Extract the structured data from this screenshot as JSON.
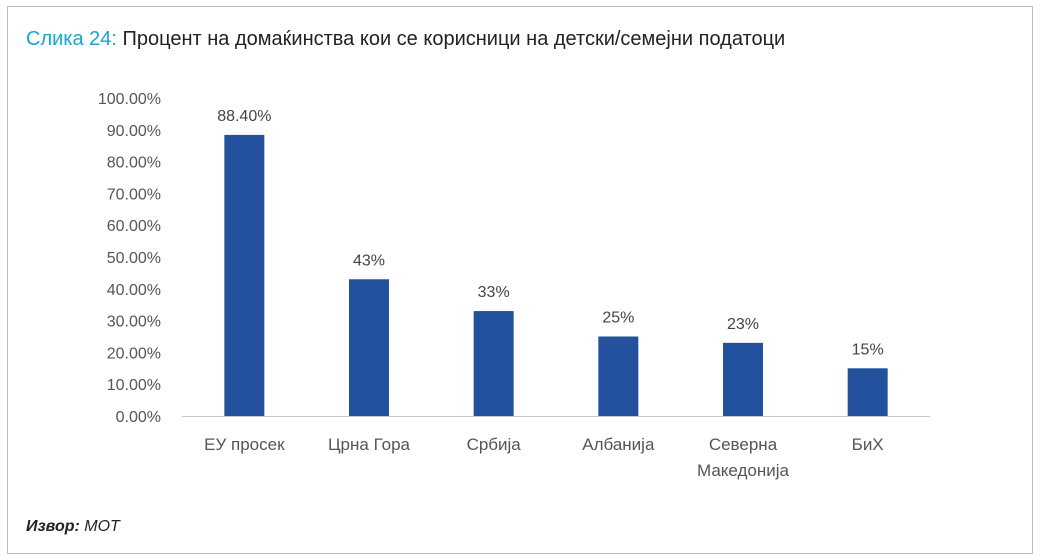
{
  "figure": {
    "prefix": "Слика 24:",
    "title": " Процент на домаќинства кои се корисници на детски/семејни податоци"
  },
  "source": {
    "label": "Извор:",
    "value": " МОТ"
  },
  "chart_data": {
    "type": "bar",
    "categories": [
      [
        "ЕУ просек"
      ],
      [
        "Црна Гора"
      ],
      [
        "Србија"
      ],
      [
        "Албанија"
      ],
      [
        "Северна",
        "Македонија"
      ],
      [
        "БиХ"
      ]
    ],
    "values": [
      88.4,
      43,
      33,
      25,
      23,
      15
    ],
    "data_labels": [
      "88.40%",
      "43%",
      "33%",
      "25%",
      "23%",
      "15%"
    ],
    "ylim": [
      0,
      100
    ],
    "yticks": [
      "0.00%",
      "10.00%",
      "20.00%",
      "30.00%",
      "40.00%",
      "50.00%",
      "60.00%",
      "70.00%",
      "80.00%",
      "90.00%",
      "100.00%"
    ],
    "bar_color": "#24519d",
    "grid": false,
    "legend": "none"
  }
}
